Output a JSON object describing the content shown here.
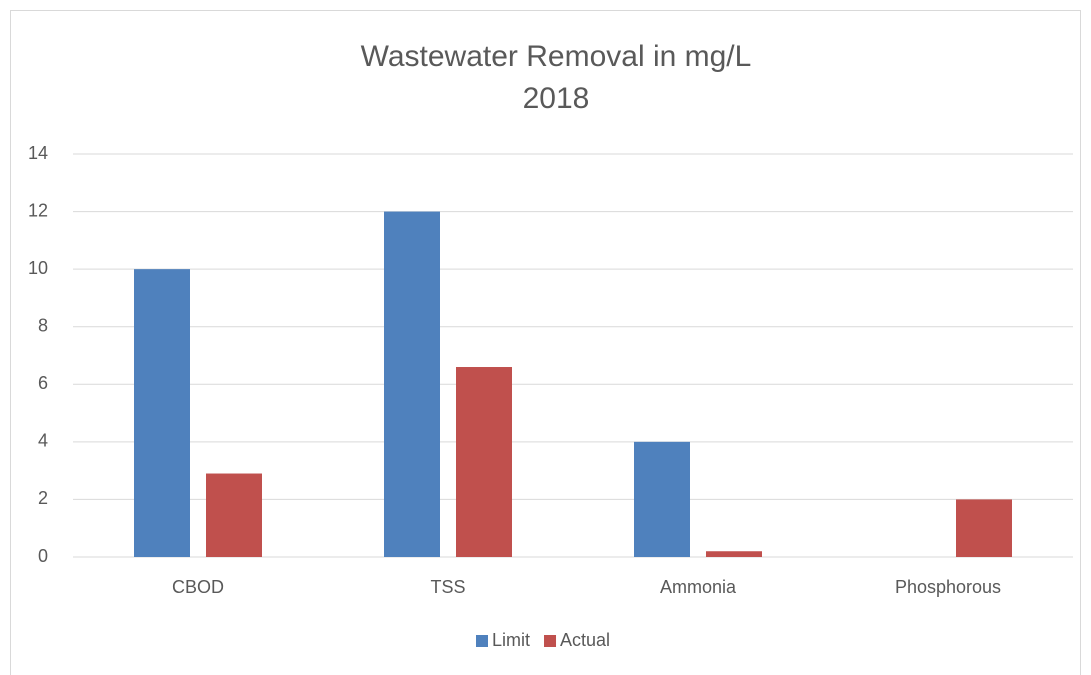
{
  "chart_data": {
    "type": "bar",
    "title": "Wastewater Removal in mg/L",
    "subtitle": "2018",
    "categories": [
      "CBOD",
      "TSS",
      "Ammonia",
      "Phosphorous"
    ],
    "series": [
      {
        "name": "Limit",
        "color": "#4f81bd",
        "values": [
          10,
          12,
          4,
          null
        ]
      },
      {
        "name": "Actual",
        "color": "#c0504d",
        "values": [
          2.9,
          6.6,
          0.2,
          2.0
        ]
      }
    ],
    "ylim": [
      0,
      14
    ],
    "yticks": [
      0,
      2,
      4,
      6,
      8,
      10,
      12,
      14
    ],
    "grid": true,
    "legend": "bottom"
  }
}
